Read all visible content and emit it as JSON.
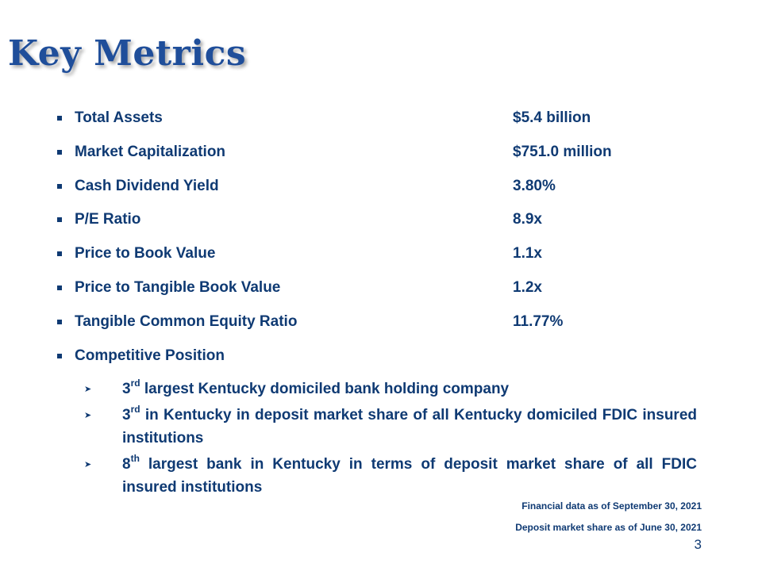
{
  "slide": {
    "title": "Key Metrics",
    "metrics": [
      {
        "label": "Total Assets",
        "value": "$5.4 billion"
      },
      {
        "label": "Market Capitalization",
        "value": "$751.0 million"
      },
      {
        "label": "Cash Dividend Yield",
        "value": "3.80%"
      },
      {
        "label": "P/E Ratio",
        "value": "8.9x"
      },
      {
        "label": "Price to Book Value",
        "value": "1.1x"
      },
      {
        "label": "Price to Tangible Book Value",
        "value": "1.2x"
      },
      {
        "label": "Tangible Common Equity Ratio",
        "value": "11.77%"
      },
      {
        "label": "Competitive Position",
        "value": ""
      }
    ],
    "competitive_points": [
      {
        "ordinal": "3",
        "suffix": "rd",
        "text": " largest Kentucky domiciled bank holding company"
      },
      {
        "ordinal": "3",
        "suffix": "rd",
        "text": " in Kentucky in deposit market share of all Kentucky domiciled FDIC insured institutions"
      },
      {
        "ordinal": "8",
        "suffix": "th",
        "text": " largest bank in Kentucky in terms of deposit market share of all FDIC insured institutions"
      }
    ],
    "footnotes": [
      "Financial data as of September 30, 2021",
      "Deposit market share as of June 30, 2021"
    ],
    "page_number": "3"
  }
}
